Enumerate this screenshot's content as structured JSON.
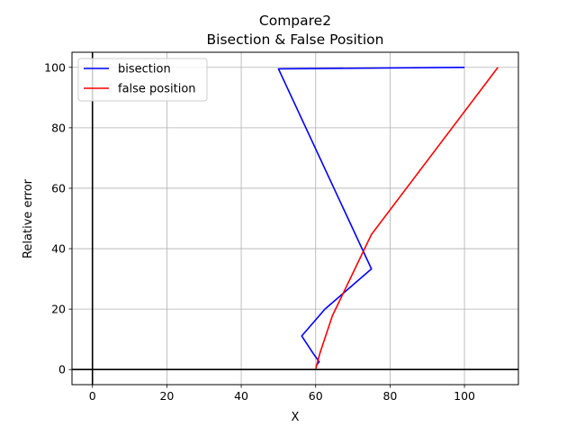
{
  "chart_data": {
    "type": "line",
    "title": "Compare2",
    "subtitle": "Bisection & False Position",
    "xlabel": "X",
    "ylabel": "Relative error",
    "xlim": [
      -5.5,
      114.5
    ],
    "ylim": [
      -5,
      105
    ],
    "xticks": [
      0,
      20,
      40,
      60,
      80,
      100
    ],
    "yticks": [
      0,
      20,
      40,
      60,
      80,
      100
    ],
    "grid": true,
    "legend_position": "top-left",
    "reference_lines": {
      "x": 0,
      "y": 0,
      "color": "#000000"
    },
    "series": [
      {
        "name": "bisection",
        "color": "#0000ff",
        "x": [
          100,
          50,
          75,
          62.5,
          56.25,
          59.375,
          60.9375,
          60.15625
        ],
        "y": [
          100,
          99.5,
          33.3,
          20,
          11.1,
          5.26,
          2.56,
          1.3
        ]
      },
      {
        "name": "false position",
        "color": "#ff0000",
        "x": [
          109,
          75,
          64.5,
          61.2,
          60.3,
          60.05
        ],
        "y": [
          100,
          44.7,
          17.8,
          5.6,
          1.6,
          0.3
        ]
      }
    ]
  }
}
